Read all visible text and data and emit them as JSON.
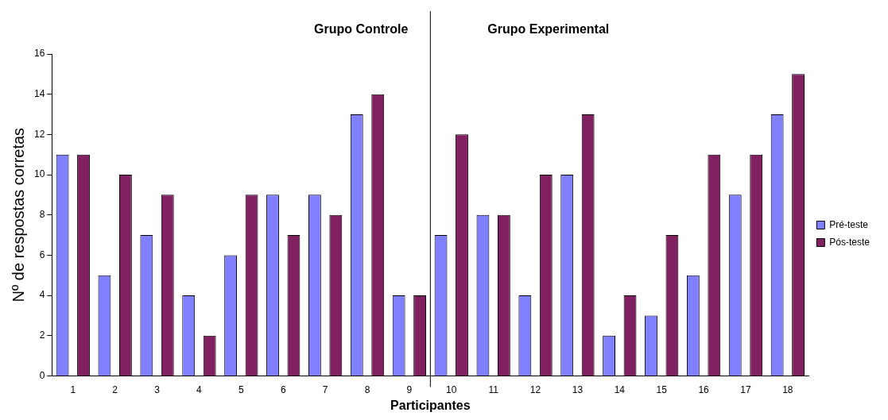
{
  "chart_data": {
    "type": "bar",
    "x": [
      1,
      2,
      3,
      4,
      5,
      6,
      7,
      8,
      9,
      10,
      11,
      12,
      13,
      14,
      15,
      16,
      17,
      18
    ],
    "xlim": [
      0.5,
      18.5
    ],
    "xticks": [
      1,
      2,
      3,
      4,
      5,
      6,
      7,
      8,
      9,
      10,
      11,
      12,
      13,
      14,
      15,
      16,
      17,
      18
    ],
    "ylim": [
      0,
      16
    ],
    "yticks": [
      0,
      2,
      4,
      6,
      8,
      10,
      12,
      14,
      16
    ],
    "xlabel": "Participantes",
    "ylabel": "Nº de respostas corretas",
    "series": [
      {
        "name": "Pré-teste",
        "color": "#8080ff",
        "values": [
          11,
          5,
          7,
          4,
          6,
          9,
          9,
          13,
          4,
          7,
          8,
          4,
          10,
          2,
          3,
          5,
          9,
          13
        ]
      },
      {
        "name": "Pós-teste",
        "color": "#802060",
        "values": [
          11,
          10,
          9,
          2,
          9,
          7,
          8,
          14,
          4,
          12,
          8,
          10,
          13,
          4,
          7,
          11,
          11,
          15
        ]
      }
    ],
    "ref_lines": [
      {
        "axis": "x",
        "value": 9.5,
        "color": "#000000"
      }
    ],
    "annotations": [
      "Grupo Controle",
      "Grupo Experimental"
    ],
    "grid": false,
    "legend": "right"
  }
}
